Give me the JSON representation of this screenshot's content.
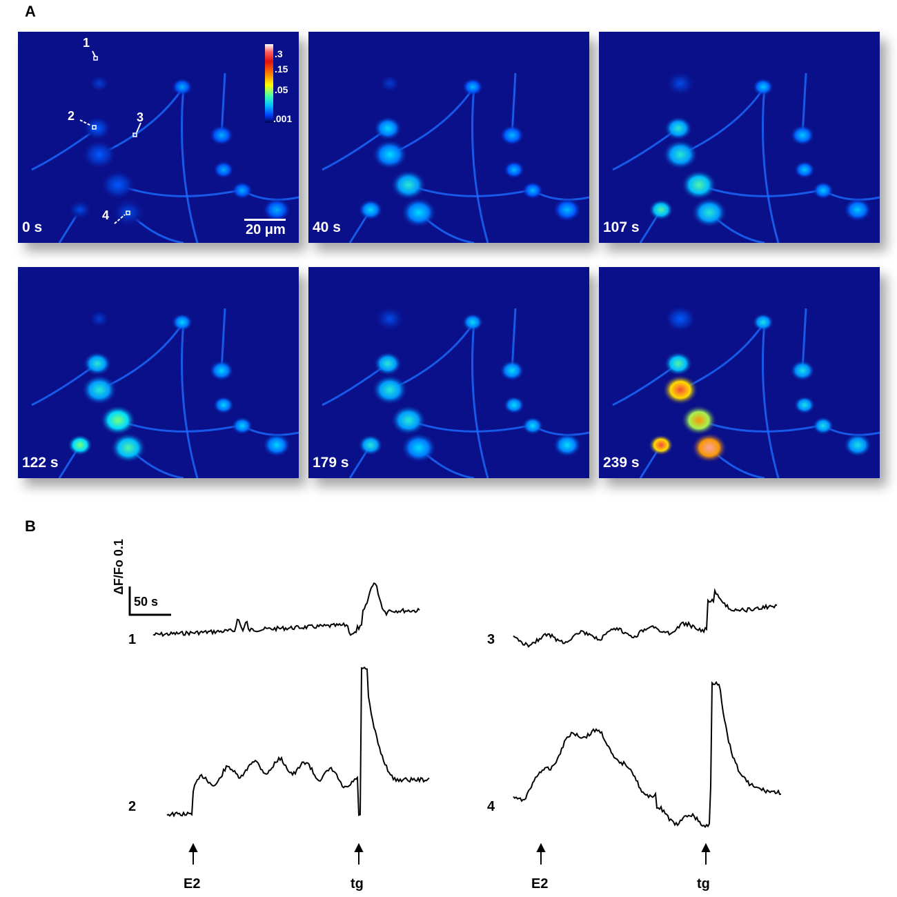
{
  "panel_a": {
    "letter": "A",
    "frames": [
      {
        "time": "0 s"
      },
      {
        "time": "40 s"
      },
      {
        "time": "107 s"
      },
      {
        "time": "122 s"
      },
      {
        "time": "179 s"
      },
      {
        "time": "239 s"
      }
    ],
    "colorbar_ticks": [
      ".3",
      ".15",
      ".05",
      ".001"
    ],
    "scale_bar": "20 μm",
    "roi_labels": [
      "1",
      "2",
      "3",
      "4"
    ]
  },
  "panel_b": {
    "letter": "B",
    "scale_y": "ΔF/Fo 0.1",
    "scale_x": "50 s",
    "trace_labels": [
      "1",
      "3",
      "2",
      "4"
    ],
    "events": [
      "E2",
      "tg",
      "E2",
      "tg"
    ]
  },
  "colors": {
    "background": "#0a0f8a",
    "trace": "#000000"
  }
}
